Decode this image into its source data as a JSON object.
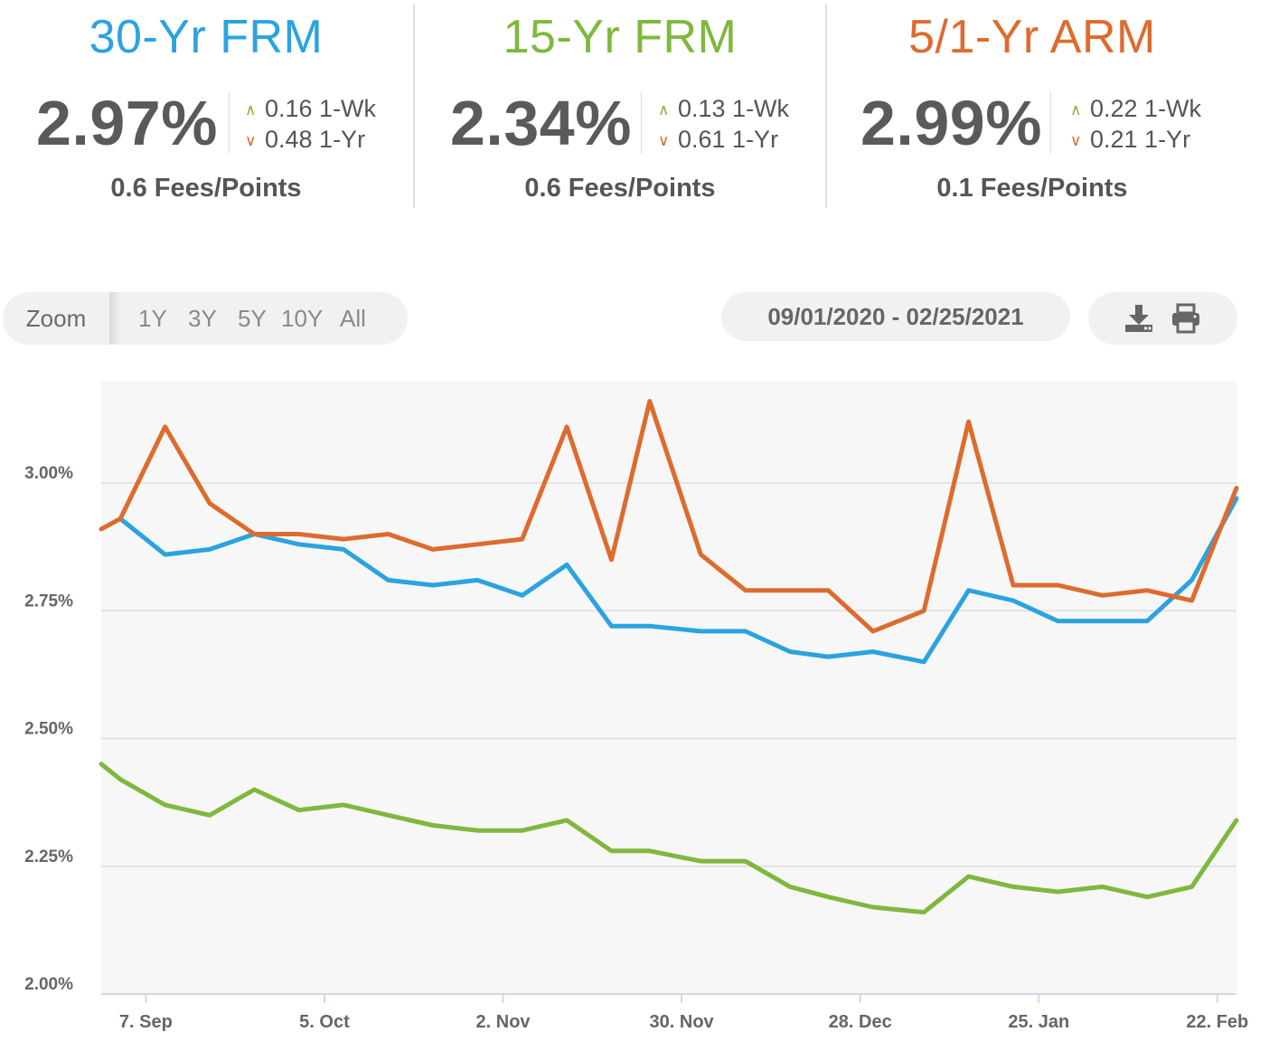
{
  "rates": [
    {
      "title": "30-Yr FRM",
      "color": "#2ba3e0",
      "rate": "2.97%",
      "week_change": "0.16 1-Wk",
      "week_dir": "up",
      "year_change": "0.48 1-Yr",
      "year_dir": "down",
      "fees": "0.6 Fees/Points"
    },
    {
      "title": "15-Yr FRM",
      "color": "#7fb83e",
      "rate": "2.34%",
      "week_change": "0.13 1-Wk",
      "week_dir": "up",
      "year_change": "0.61 1-Yr",
      "year_dir": "down",
      "fees": "0.6 Fees/Points"
    },
    {
      "title": "5/1-Yr ARM",
      "color": "#de6b2e",
      "rate": "2.99%",
      "week_change": "0.22 1-Wk",
      "week_dir": "up",
      "year_change": "0.21 1-Yr",
      "year_dir": "down",
      "fees": "0.1 Fees/Points"
    }
  ],
  "colors": {
    "up": "#7fb83e",
    "down": "#de6b2e"
  },
  "icons": {
    "up": "chevron-up-icon",
    "down": "chevron-down-icon",
    "download": "download-icon",
    "print": "printer-icon"
  },
  "toolbar": {
    "zoom_label": "Zoom",
    "zoom_options": [
      "1Y",
      "3Y",
      "5Y",
      "10Y",
      "All"
    ],
    "date_range": "09/01/2020 - 02/25/2021"
  },
  "chart_data": {
    "type": "line",
    "x_axis": "date",
    "x_range": [
      "2020-08-31",
      "2021-02-25"
    ],
    "x_ticks": [
      {
        "date": "2020-09-07",
        "label": "7. Sep"
      },
      {
        "date": "2020-10-05",
        "label": "5. Oct"
      },
      {
        "date": "2020-11-02",
        "label": "2. Nov"
      },
      {
        "date": "2020-11-30",
        "label": "30. Nov"
      },
      {
        "date": "2020-12-28",
        "label": "28. Dec"
      },
      {
        "date": "2021-01-25",
        "label": "25. Jan"
      },
      {
        "date": "2021-02-22",
        "label": "22. Feb"
      }
    ],
    "ylim": [
      2.0,
      3.2
    ],
    "y_ticks": [
      {
        "value": 2.0,
        "label": "2.00%"
      },
      {
        "value": 2.25,
        "label": "2.25%"
      },
      {
        "value": 2.5,
        "label": "2.50%"
      },
      {
        "value": 2.75,
        "label": "2.75%"
      },
      {
        "value": 3.0,
        "label": "3.00%"
      }
    ],
    "grid": true,
    "legend": "none",
    "x": [
      "2020-08-31",
      "2020-09-03",
      "2020-09-10",
      "2020-09-17",
      "2020-09-24",
      "2020-10-01",
      "2020-10-08",
      "2020-10-15",
      "2020-10-22",
      "2020-10-29",
      "2020-11-05",
      "2020-11-12",
      "2020-11-19",
      "2020-11-25",
      "2020-12-03",
      "2020-12-10",
      "2020-12-17",
      "2020-12-23",
      "2020-12-30",
      "2021-01-07",
      "2021-01-14",
      "2021-01-21",
      "2021-01-28",
      "2021-02-04",
      "2021-02-11",
      "2021-02-18",
      "2021-02-25"
    ],
    "series": [
      {
        "color": "#2ba3e0",
        "values": [
          null,
          2.93,
          2.86,
          2.87,
          2.9,
          2.88,
          2.87,
          2.81,
          2.8,
          2.81,
          2.78,
          2.84,
          2.72,
          2.72,
          2.71,
          2.71,
          2.67,
          2.66,
          2.67,
          2.65,
          2.79,
          2.77,
          2.73,
          2.73,
          2.73,
          2.81,
          2.97
        ]
      },
      {
        "color": "#7fb83e",
        "values": [
          2.45,
          2.42,
          2.37,
          2.35,
          2.4,
          2.36,
          2.37,
          2.35,
          2.33,
          2.32,
          2.32,
          2.34,
          2.28,
          2.28,
          2.26,
          2.26,
          2.21,
          2.19,
          2.17,
          2.16,
          2.23,
          2.21,
          2.2,
          2.21,
          2.19,
          2.21,
          2.34
        ]
      },
      {
        "color": "#de6b2e",
        "values": [
          2.91,
          2.93,
          3.11,
          2.96,
          2.9,
          2.9,
          2.89,
          2.9,
          2.87,
          2.88,
          2.89,
          3.11,
          2.85,
          3.16,
          2.86,
          2.79,
          2.79,
          2.79,
          2.71,
          2.75,
          3.12,
          2.8,
          2.8,
          2.78,
          2.79,
          2.77,
          2.99
        ]
      }
    ]
  }
}
